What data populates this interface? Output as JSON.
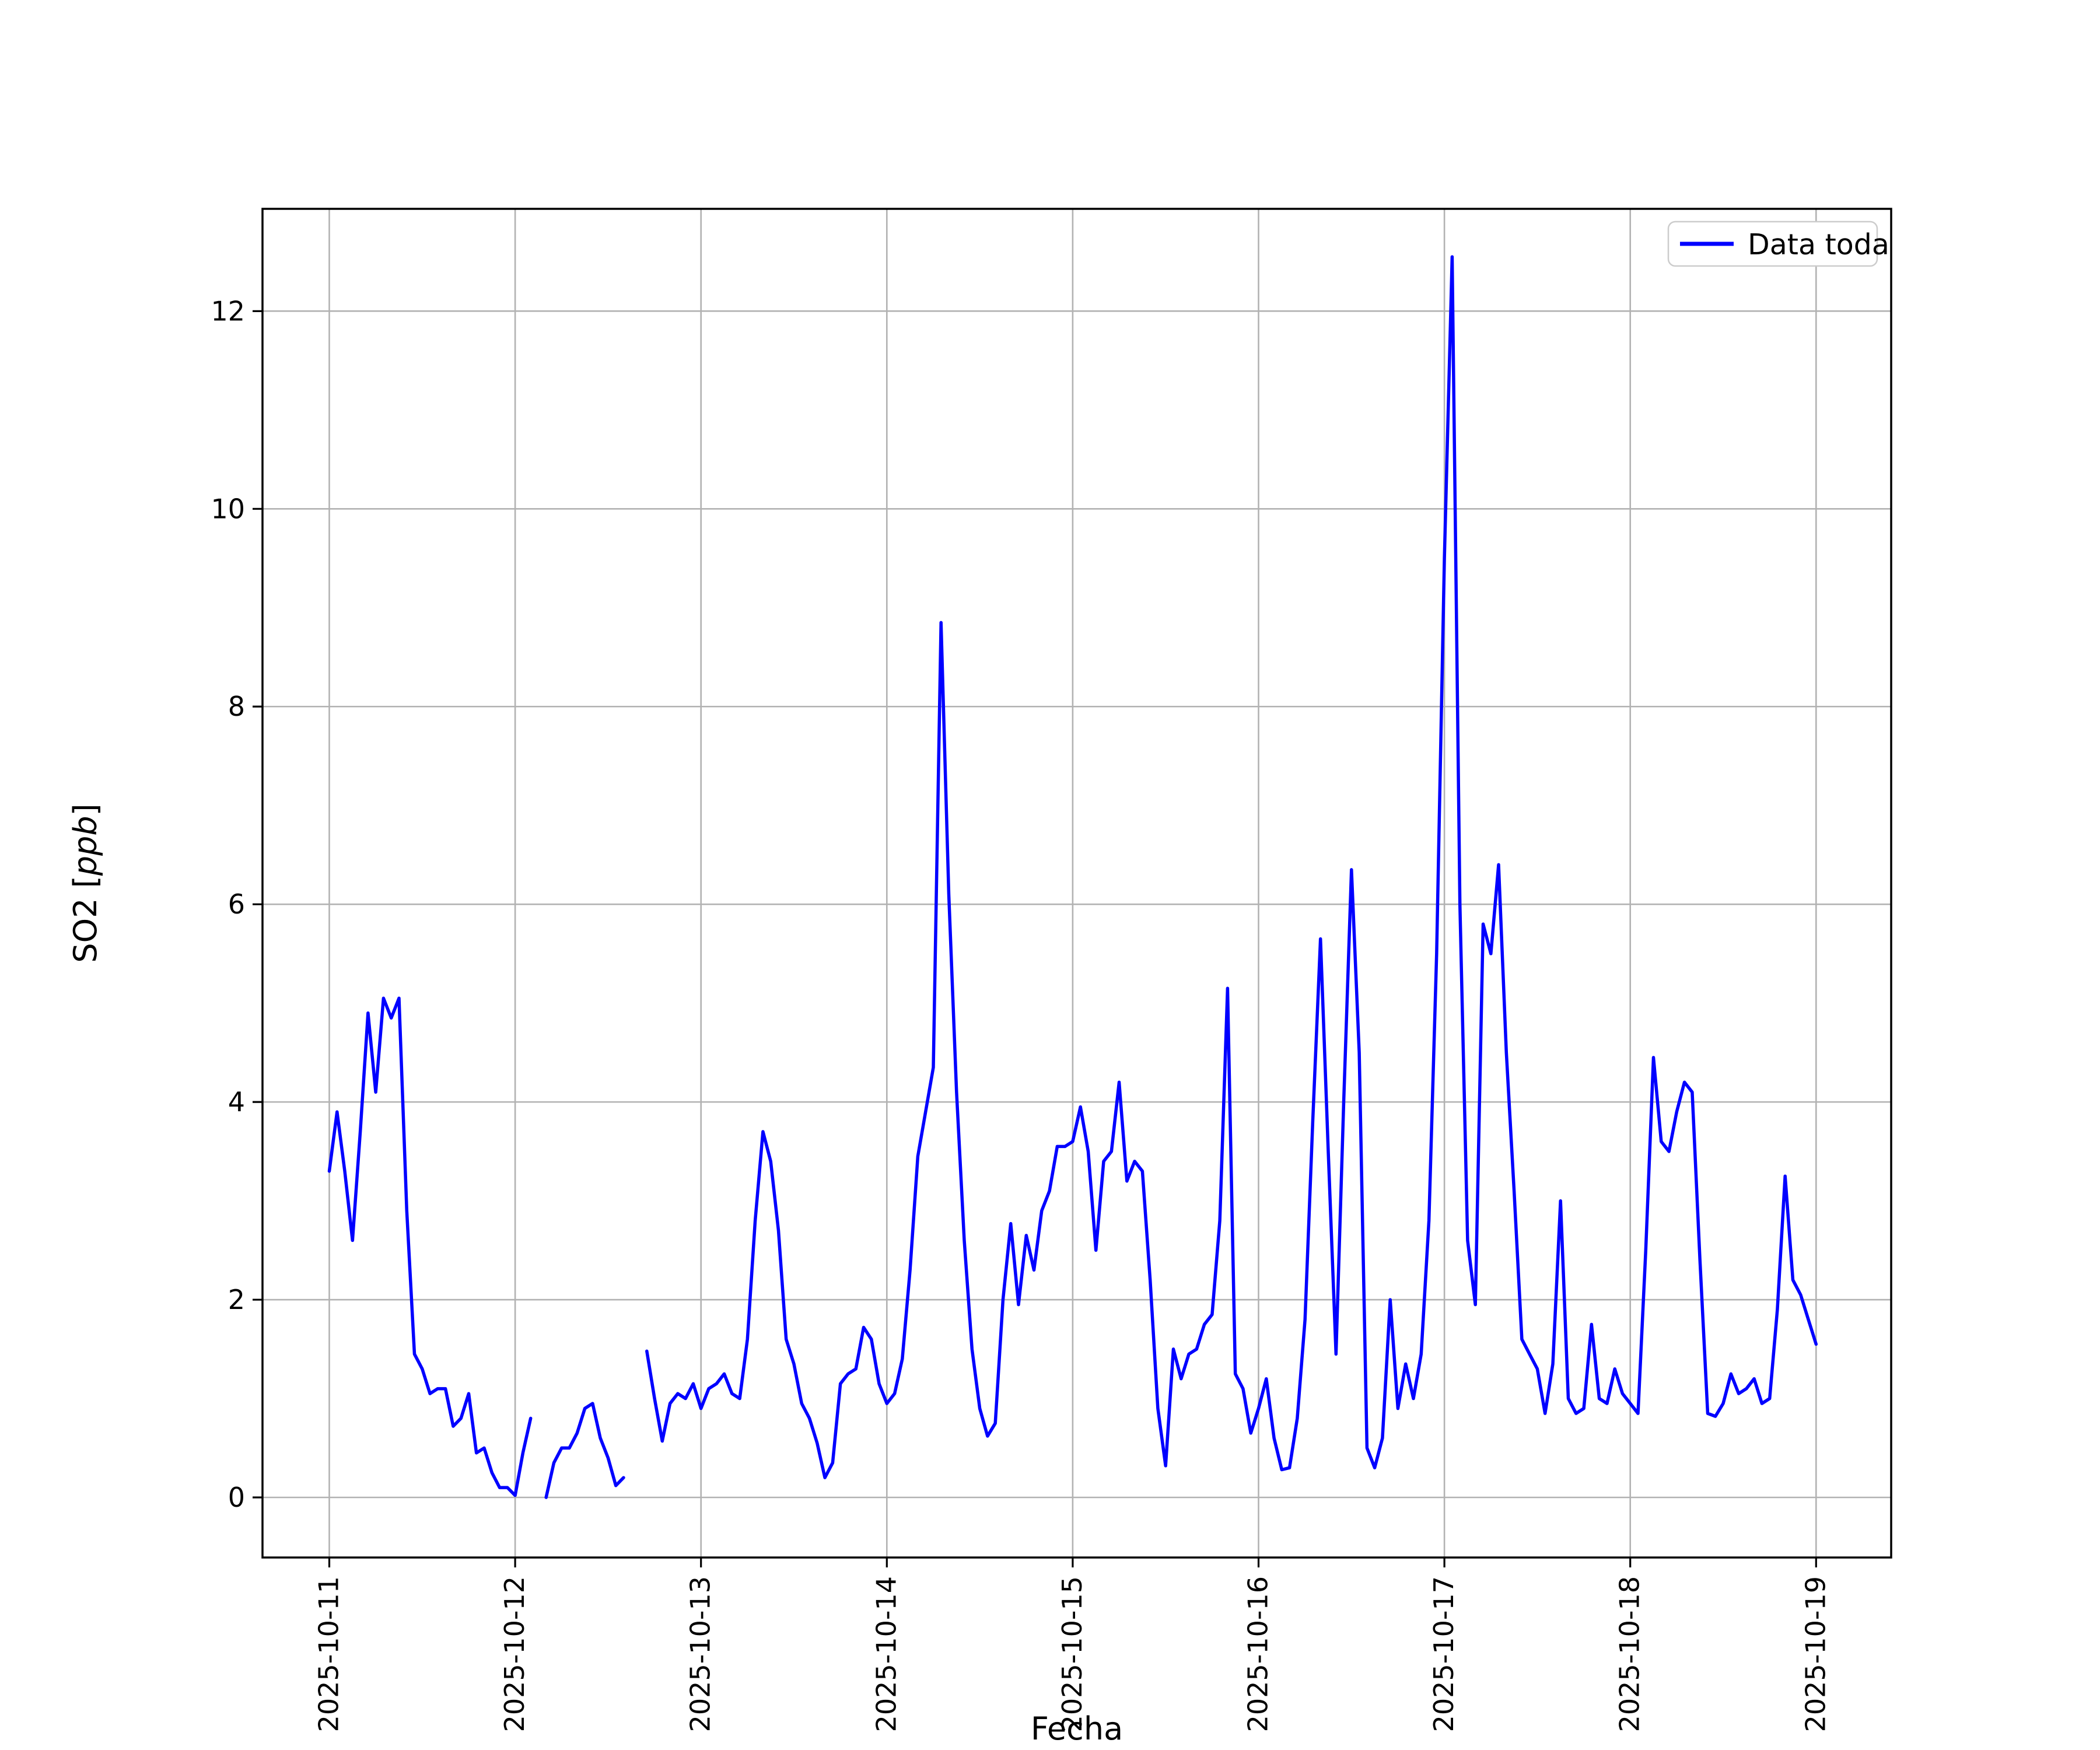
{
  "chart_data": {
    "type": "line",
    "title": "",
    "xlabel": "Fecha",
    "ylabel": "SO2 [ppb]",
    "ylabel_parts": {
      "prefix": "SO2 [",
      "italic": "ppb",
      "suffix": "]"
    },
    "grid": true,
    "background_color": "#ffffff",
    "grid_color": "#b2b2b2",
    "spine_color": "#000000",
    "legend": {
      "position": "upper right",
      "border_color": "#cccccc",
      "entries": [
        {
          "label": "Data toda",
          "color": "#0000ff"
        }
      ]
    },
    "x_axis": {
      "start": "2025-10-11 00:00",
      "step_hours": 1,
      "tick_every_hours": 24,
      "tick_labels": [
        "2025-10-11",
        "2025-10-12",
        "2025-10-13",
        "2025-10-14",
        "2025-10-15",
        "2025-10-16",
        "2025-10-17",
        "2025-10-18",
        "2025-10-19"
      ],
      "tick_label_rotation_deg": 90
    },
    "y_axis": {
      "ticks": [
        0,
        2,
        4,
        6,
        8,
        10,
        12
      ],
      "lim": [
        -0.61,
        13.03
      ]
    },
    "series": [
      {
        "name": "Data toda",
        "color": "#0000ff",
        "note": "hourly values, index = hours since 2025-10-11 00:00, null = data gap",
        "values": [
          3.3,
          3.9,
          3.3,
          2.6,
          3.7,
          4.9,
          4.1,
          5.05,
          4.85,
          5.05,
          2.9,
          1.45,
          1.3,
          1.05,
          1.1,
          1.1,
          0.72,
          0.8,
          1.05,
          0.45,
          0.5,
          0.25,
          0.1,
          0.1,
          0.02,
          0.45,
          0.8,
          null,
          0.0,
          0.35,
          0.5,
          0.5,
          0.65,
          0.9,
          0.95,
          0.6,
          0.4,
          0.12,
          0.2,
          null,
          null,
          1.48,
          1.0,
          0.57,
          0.95,
          1.05,
          1.0,
          1.15,
          0.9,
          1.1,
          1.15,
          1.25,
          1.05,
          1.0,
          1.6,
          2.8,
          3.7,
          3.4,
          2.7,
          1.6,
          1.35,
          0.95,
          0.8,
          0.55,
          0.2,
          0.35,
          1.15,
          1.25,
          1.3,
          1.72,
          1.6,
          1.15,
          0.95,
          1.05,
          1.4,
          2.3,
          3.45,
          3.9,
          4.35,
          8.85,
          6.1,
          4.1,
          2.6,
          1.5,
          0.9,
          0.62,
          0.75,
          2.0,
          2.77,
          1.95,
          2.65,
          2.3,
          2.9,
          3.1,
          3.55,
          3.55,
          3.6,
          3.95,
          3.5,
          2.5,
          3.4,
          3.5,
          4.2,
          3.2,
          3.4,
          3.3,
          2.2,
          0.9,
          0.32,
          1.5,
          1.2,
          1.45,
          1.5,
          1.75,
          1.85,
          2.8,
          5.15,
          1.25,
          1.1,
          0.65,
          0.9,
          1.2,
          0.6,
          0.28,
          0.3,
          0.8,
          1.8,
          3.8,
          5.65,
          3.5,
          1.45,
          4.0,
          6.35,
          4.5,
          0.5,
          0.3,
          0.6,
          2.0,
          0.9,
          1.35,
          1.0,
          1.45,
          2.8,
          5.5,
          9.5,
          12.55,
          6.0,
          2.6,
          1.95,
          5.8,
          5.5,
          6.4,
          4.5,
          3.1,
          1.6,
          1.45,
          1.3,
          0.85,
          1.35,
          3.0,
          1.0,
          0.85,
          0.9,
          1.75,
          1.0,
          0.95,
          1.3,
          1.05,
          0.95,
          0.85,
          2.5,
          4.45,
          3.6,
          3.5,
          3.9,
          4.2,
          4.1,
          2.4,
          0.85,
          0.82,
          0.95,
          1.25,
          1.05,
          1.1,
          1.2,
          0.95,
          1.0,
          1.9,
          3.25,
          2.2,
          2.05,
          1.8,
          1.55
        ]
      }
    ]
  }
}
